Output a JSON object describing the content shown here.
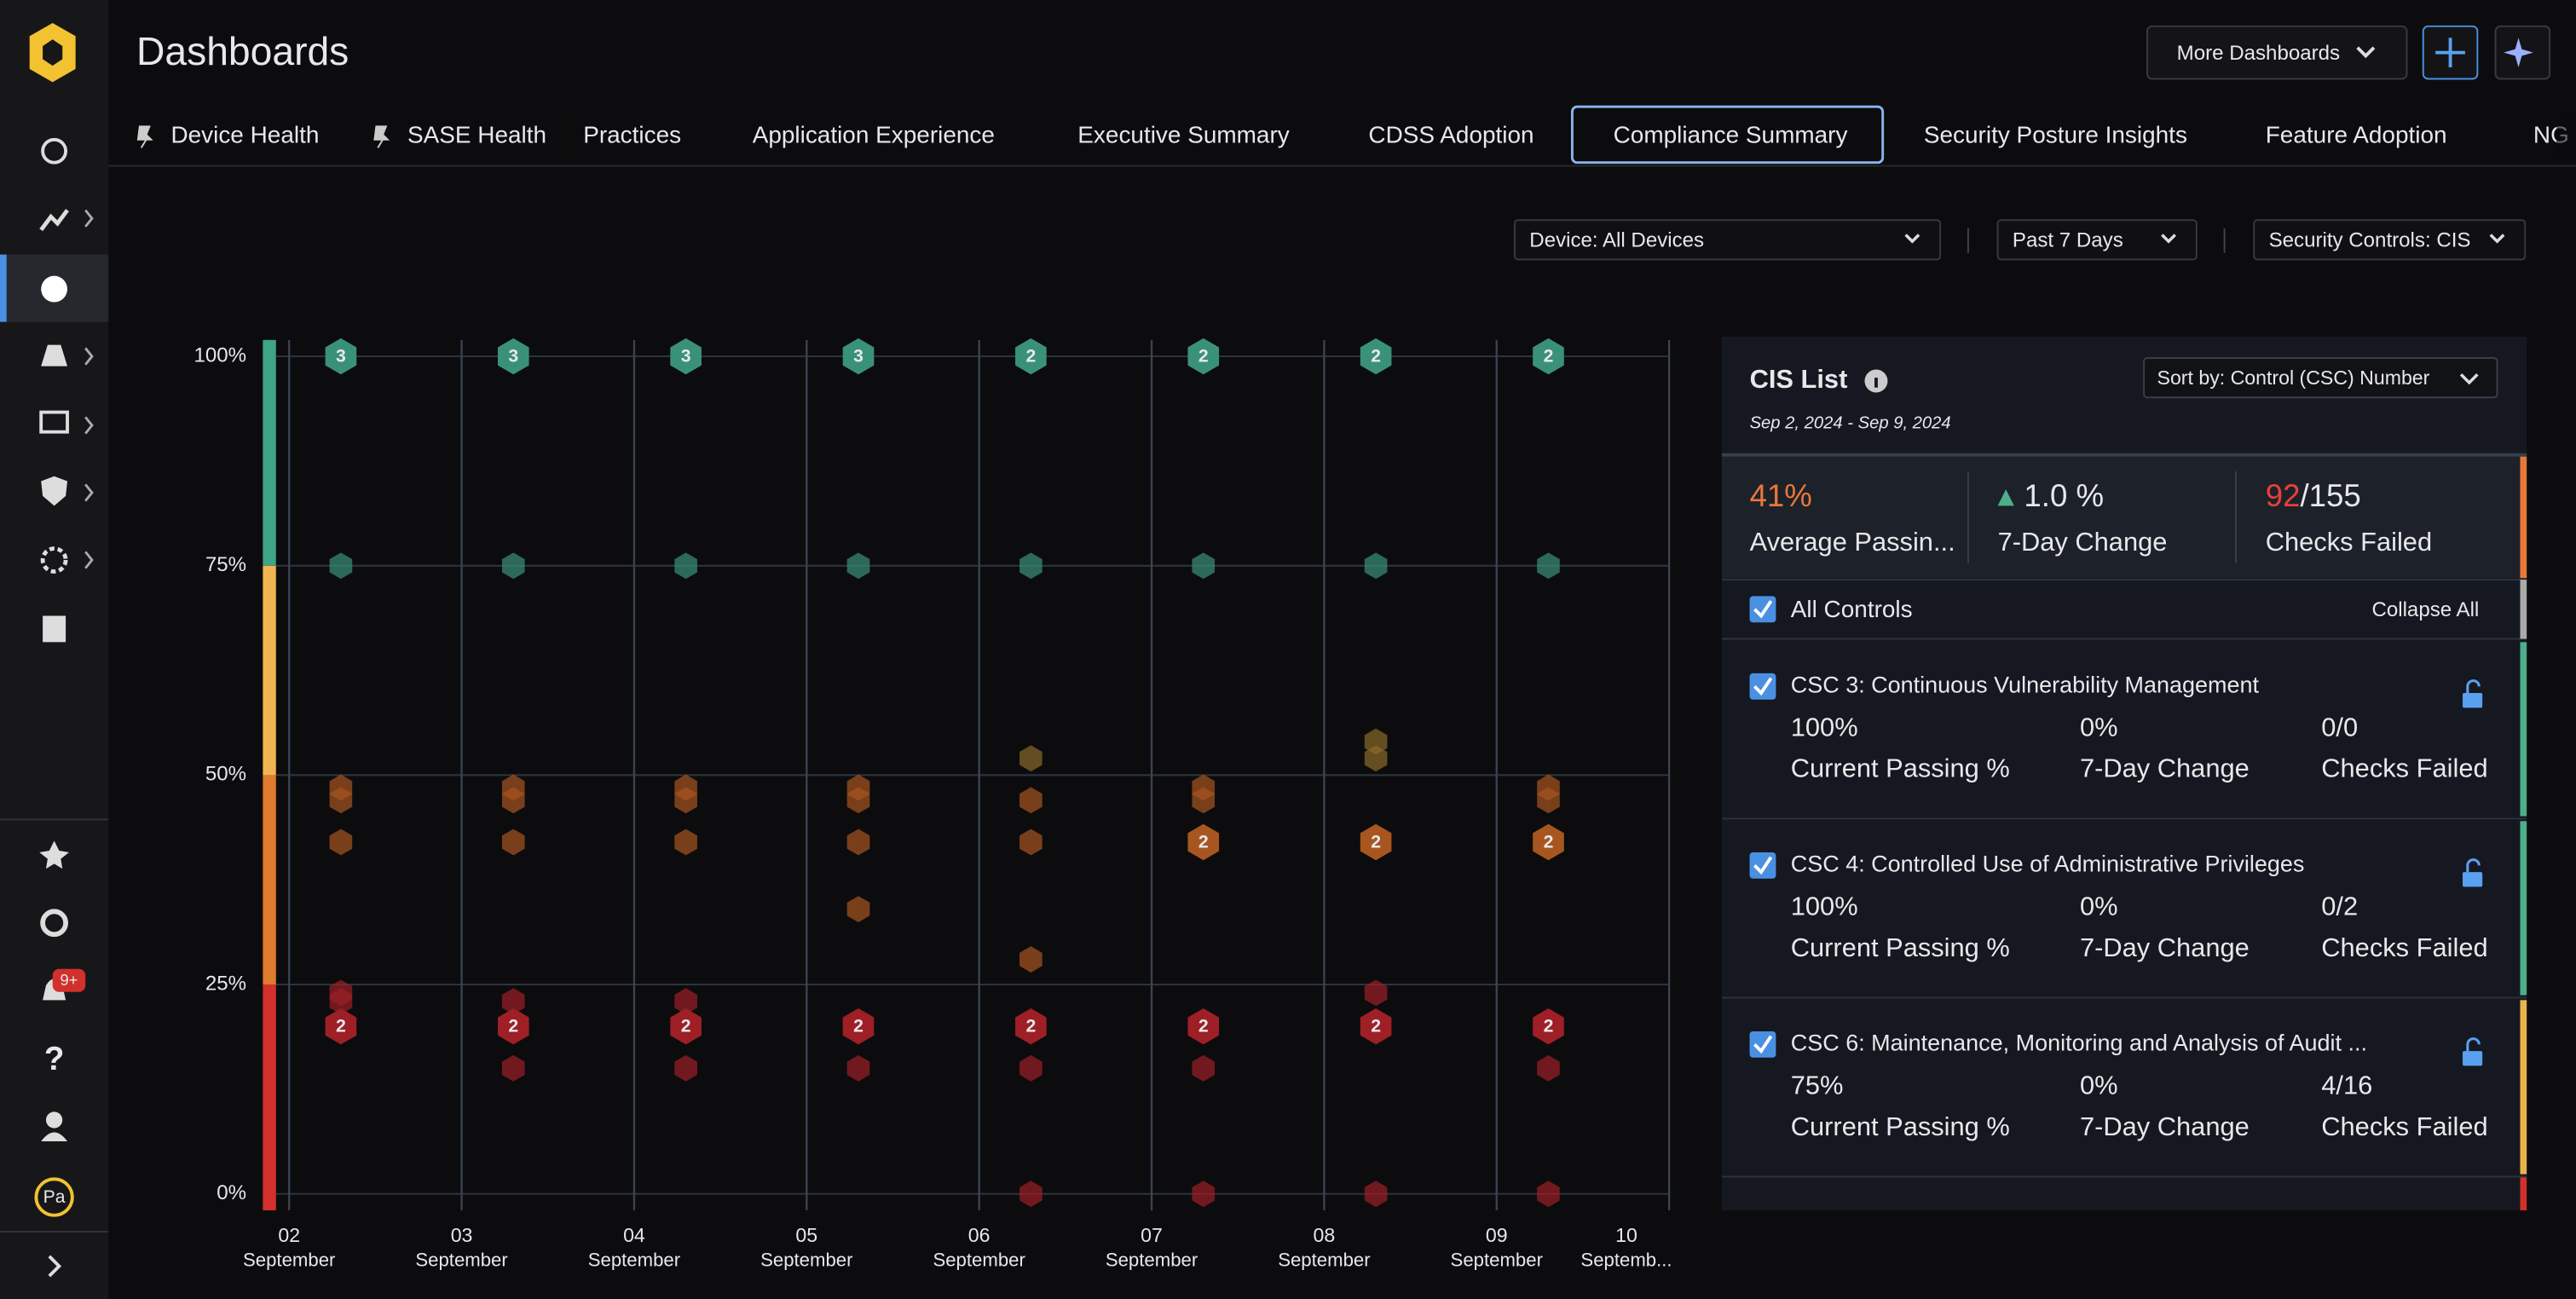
{
  "header": {
    "title": "Dashboards",
    "more_button": "More Dashboards"
  },
  "tabs": [
    {
      "label": "Device Health",
      "pinned": true
    },
    {
      "label": "SASE Health",
      "pinned": true
    },
    {
      "label": "Practices"
    },
    {
      "label": "Application Experience"
    },
    {
      "label": "Executive Summary"
    },
    {
      "label": "CDSS Adoption"
    },
    {
      "label": "Compliance Summary",
      "active": true
    },
    {
      "label": "Security Posture Insights"
    },
    {
      "label": "Feature Adoption"
    },
    {
      "label": "NG"
    }
  ],
  "filters": [
    "Device: All Devices",
    "Past 7 Days",
    "Security Controls: CIS"
  ],
  "sidebar": {
    "notification_badge": "9+",
    "avatar": "Pa"
  },
  "chart_data": {
    "type": "scatter",
    "xlim": [
      2,
      10
    ],
    "xticks": [
      {
        "value": 2,
        "label": "02",
        "sublabel": "September"
      },
      {
        "value": 3,
        "label": "03",
        "sublabel": "September"
      },
      {
        "value": 4,
        "label": "04",
        "sublabel": "September"
      },
      {
        "value": 5,
        "label": "05",
        "sublabel": "September"
      },
      {
        "value": 6,
        "label": "06",
        "sublabel": "September"
      },
      {
        "value": 7,
        "label": "07",
        "sublabel": "September"
      },
      {
        "value": 8,
        "label": "08",
        "sublabel": "September"
      },
      {
        "value": 9,
        "label": "09",
        "sublabel": "September"
      },
      {
        "value": 10,
        "label": "10",
        "sublabel": "Septemb..."
      }
    ],
    "ylim": [
      0,
      100
    ],
    "yticks": [
      {
        "value": 0,
        "label": "0%"
      },
      {
        "value": 25,
        "label": "25%"
      },
      {
        "value": 50,
        "label": "50%"
      },
      {
        "value": 75,
        "label": "75%"
      },
      {
        "value": 100,
        "label": "100%"
      }
    ],
    "grid": true,
    "bands": [
      {
        "from": 0,
        "to": 25,
        "color": "#d2302c"
      },
      {
        "from": 25,
        "to": 50,
        "color": "#e07a2e"
      },
      {
        "from": 50,
        "to": 75,
        "color": "#f0b450"
      },
      {
        "from": 75,
        "to": 100,
        "color": "#3fa386"
      }
    ],
    "series": [
      {
        "color": "#3a917a",
        "x": [
          2.3,
          3.3,
          4.3,
          5.3,
          6.3,
          7.3,
          8.3,
          9.3,
          2.3,
          3.3,
          4.3,
          5.3,
          6.3,
          7.3,
          8.3,
          9.3
        ],
        "values": [
          100,
          100,
          100,
          100,
          100,
          100,
          100,
          100,
          75,
          75,
          75,
          75,
          75,
          75,
          75,
          75
        ],
        "counts": [
          3,
          3,
          3,
          3,
          2,
          2,
          2,
          2,
          null,
          null,
          null,
          null,
          null,
          null,
          null,
          null
        ]
      },
      {
        "color": "#8a6a28",
        "x": [
          6.3,
          8.3,
          8.3
        ],
        "values": [
          52,
          54,
          52
        ],
        "counts": [
          null,
          null,
          null
        ]
      },
      {
        "color": "#a8561f",
        "x": [
          2.3,
          2.3,
          2.3,
          3.3,
          3.3,
          3.3,
          4.3,
          4.3,
          4.3,
          5.3,
          5.3,
          5.3,
          5.3,
          6.3,
          6.3,
          6.3,
          7.3,
          7.3,
          7.3,
          8.3,
          9.3,
          9.3,
          9.3
        ],
        "values": [
          48.5,
          47,
          42,
          48.5,
          47,
          42,
          48.5,
          47,
          42,
          48.5,
          47,
          42,
          34,
          47,
          42,
          28,
          48.5,
          47,
          42,
          42,
          48.5,
          47,
          42
        ],
        "counts": [
          null,
          null,
          null,
          null,
          null,
          null,
          null,
          null,
          null,
          null,
          null,
          null,
          null,
          null,
          null,
          null,
          null,
          null,
          2,
          2,
          null,
          null,
          2
        ]
      },
      {
        "color": "#9e1f26",
        "x": [
          2.3,
          2.3,
          2.3,
          3.3,
          3.3,
          3.3,
          4.3,
          4.3,
          4.3,
          5.3,
          5.3,
          6.3,
          6.3,
          6.3,
          7.3,
          7.3,
          7.3,
          8.3,
          8.3,
          8.3,
          9.3,
          9.3,
          9.3
        ],
        "values": [
          24,
          23,
          20,
          23,
          20,
          15,
          23,
          20,
          15,
          20,
          15,
          20,
          15,
          0,
          20,
          15,
          0,
          24,
          20,
          0,
          20,
          15,
          0
        ],
        "counts": [
          null,
          null,
          2,
          null,
          2,
          null,
          null,
          2,
          null,
          2,
          null,
          2,
          null,
          null,
          2,
          null,
          null,
          null,
          2,
          null,
          2,
          null,
          null
        ]
      }
    ]
  },
  "cis_list": {
    "title": "CIS List",
    "date_range": "Sep 2, 2024 - Sep 9, 2024",
    "sort": "Sort by: Control (CSC) Number",
    "summary": [
      {
        "value": "41%",
        "label": "Average Passin...",
        "color": "#e8783a"
      },
      {
        "value": "1.0 %",
        "label": "7-Day Change",
        "color": "#e8e8ea"
      },
      {
        "value": "92",
        "total": "/155",
        "label": "Checks Failed",
        "color": "#e8403a"
      }
    ],
    "all_controls": "All Controls",
    "collapse_all": "Collapse All",
    "controls": [
      {
        "title": "CSC 3: Continuous Vulnerability Management",
        "passing": "100%",
        "change": "0%",
        "checks": "0/0",
        "passing_label": "Current Passing %",
        "change_label": "7-Day Change",
        "checks_label": "Checks Failed",
        "color": "#4caf8a"
      },
      {
        "title": "CSC 4: Controlled Use of Administrative Privileges",
        "passing": "100%",
        "change": "0%",
        "checks": "0/2",
        "passing_label": "Current Passing %",
        "change_label": "7-Day Change",
        "checks_label": "Checks Failed",
        "color": "#4caf8a"
      },
      {
        "title": "CSC 6: Maintenance, Monitoring and Analysis of Audit ...",
        "passing": "75%",
        "change": "0%",
        "checks": "4/16",
        "passing_label": "Current Passing %",
        "change_label": "7-Day Change",
        "checks_label": "Checks Failed",
        "color": "#e8b44a"
      }
    ]
  }
}
